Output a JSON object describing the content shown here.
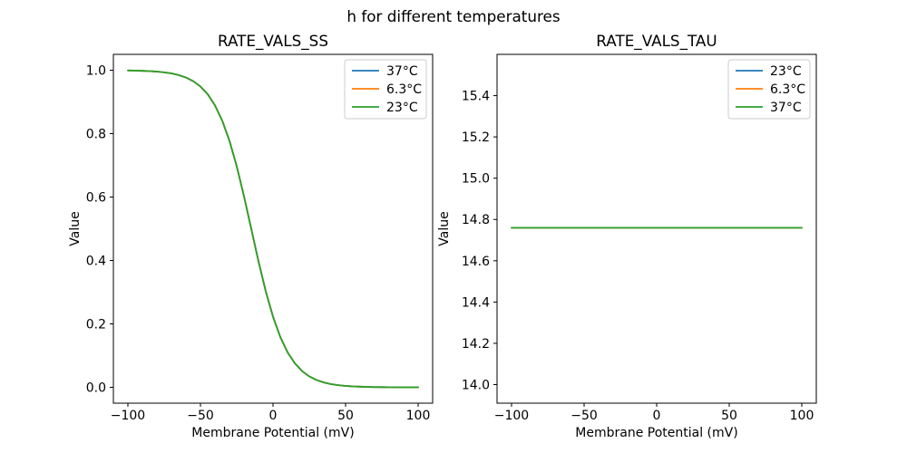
{
  "figure": {
    "suptitle": "h for different temperatures",
    "background": "#ffffff",
    "text_color": "#000000"
  },
  "chart_data": [
    {
      "id": "ss",
      "type": "line",
      "title": "RATE_VALS_SS",
      "xlabel": "Membrane Potential (mV)",
      "ylabel": "Value",
      "xlim": [
        -110,
        110
      ],
      "ylim": [
        -0.05,
        1.05
      ],
      "grid": false,
      "xticks": [
        {
          "v": -100,
          "label": "−100"
        },
        {
          "v": -50,
          "label": "−50"
        },
        {
          "v": 0,
          "label": "0"
        },
        {
          "v": 50,
          "label": "50"
        },
        {
          "v": 100,
          "label": "100"
        }
      ],
      "yticks": [
        {
          "v": 0.0,
          "label": "0.0"
        },
        {
          "v": 0.2,
          "label": "0.2"
        },
        {
          "v": 0.4,
          "label": "0.4"
        },
        {
          "v": 0.6,
          "label": "0.6"
        },
        {
          "v": 0.8,
          "label": "0.8"
        },
        {
          "v": 1.0,
          "label": "1.0"
        }
      ],
      "legend": {
        "position": "upper-right",
        "entries": [
          {
            "label": "37°C",
            "color": "#1f77b4"
          },
          {
            "label": "6.3°C",
            "color": "#ff7f0e"
          },
          {
            "label": "23°C",
            "color": "#2ca02c"
          }
        ]
      },
      "note": "All three temperature curves overlap exactly; only the last-drawn green (23°C) curve is visible. Sigmoid with half-value near −15 mV.",
      "x": [
        -100,
        -95,
        -90,
        -85,
        -80,
        -75,
        -70,
        -65,
        -60,
        -55,
        -50,
        -45,
        -40,
        -35,
        -30,
        -25,
        -20,
        -15,
        -10,
        -5,
        0,
        5,
        10,
        15,
        20,
        25,
        30,
        35,
        40,
        45,
        50,
        55,
        60,
        65,
        70,
        75,
        80,
        85,
        90,
        95,
        100
      ],
      "y_shared": [
        0.9992,
        0.9987,
        0.9981,
        0.9971,
        0.9956,
        0.9933,
        0.9899,
        0.9847,
        0.977,
        0.9656,
        0.9487,
        0.9242,
        0.8893,
        0.8411,
        0.7773,
        0.6971,
        0.6027,
        0.5,
        0.3973,
        0.3029,
        0.2227,
        0.1589,
        0.1107,
        0.0759,
        0.0513,
        0.0345,
        0.023,
        0.0153,
        0.0101,
        0.0067,
        0.0044,
        0.0029,
        0.0019,
        0.0013,
        0.0008,
        0.0006,
        0.0004,
        0.0002,
        0.0002,
        0.0001,
        0.0001
      ],
      "series": [
        {
          "name": "37°C",
          "color": "#1f77b4",
          "y": "shared"
        },
        {
          "name": "6.3°C",
          "color": "#ff7f0e",
          "y": "shared"
        },
        {
          "name": "23°C",
          "color": "#2ca02c",
          "y": "shared"
        }
      ]
    },
    {
      "id": "tau",
      "type": "line",
      "title": "RATE_VALS_TAU",
      "xlabel": "Membrane Potential (mV)",
      "ylabel": "Value",
      "xlim": [
        -110,
        110
      ],
      "ylim": [
        13.91,
        15.6
      ],
      "grid": false,
      "xticks": [
        {
          "v": -100,
          "label": "−100"
        },
        {
          "v": -50,
          "label": "−50"
        },
        {
          "v": 0,
          "label": "0"
        },
        {
          "v": 50,
          "label": "50"
        },
        {
          "v": 100,
          "label": "100"
        }
      ],
      "yticks": [
        {
          "v": 14.0,
          "label": "14.0"
        },
        {
          "v": 14.2,
          "label": "14.2"
        },
        {
          "v": 14.4,
          "label": "14.4"
        },
        {
          "v": 14.6,
          "label": "14.6"
        },
        {
          "v": 14.8,
          "label": "14.8"
        },
        {
          "v": 15.0,
          "label": "15.0"
        },
        {
          "v": 15.2,
          "label": "15.2"
        },
        {
          "v": 15.4,
          "label": "15.4"
        }
      ],
      "legend": {
        "position": "upper-right",
        "entries": [
          {
            "label": "23°C",
            "color": "#1f77b4"
          },
          {
            "label": "6.3°C",
            "color": "#ff7f0e"
          },
          {
            "label": "37°C",
            "color": "#2ca02c"
          }
        ]
      },
      "note": "All three temperature lines overlap exactly at a constant value ≈14.76; only the last-drawn green (37°C) line is visible.",
      "x": [
        -100,
        -50,
        0,
        50,
        100
      ],
      "y_shared": [
        14.76,
        14.76,
        14.76,
        14.76,
        14.76
      ],
      "series": [
        {
          "name": "23°C",
          "color": "#1f77b4",
          "y": "shared"
        },
        {
          "name": "6.3°C",
          "color": "#ff7f0e",
          "y": "shared"
        },
        {
          "name": "37°C",
          "color": "#2ca02c",
          "y": "shared"
        }
      ]
    }
  ]
}
